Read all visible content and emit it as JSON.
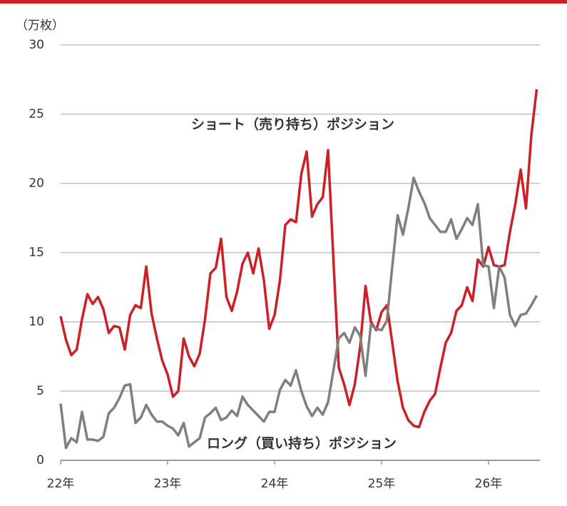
{
  "chart_data": {
    "type": "line",
    "y_label": "（万枚）",
    "x": [
      2022.0,
      2022.05,
      2022.1,
      2022.15,
      2022.2,
      2022.25,
      2022.3,
      2022.35,
      2022.4,
      2022.45,
      2022.5,
      2022.55,
      2022.6,
      2022.65,
      2022.7,
      2022.75,
      2022.8,
      2022.85,
      2022.9,
      2022.95,
      2023.0,
      2023.05,
      2023.1,
      2023.15,
      2023.2,
      2023.25,
      2023.3,
      2023.35,
      2023.4,
      2023.45,
      2023.5,
      2023.55,
      2023.6,
      2023.65,
      2023.7,
      2023.75,
      2023.8,
      2023.85,
      2023.9,
      2023.95,
      2024.0,
      2024.05,
      2024.1,
      2024.15,
      2024.2,
      2024.25,
      2024.3,
      2024.35,
      2024.4,
      2024.45,
      2024.5,
      2024.55,
      2024.6,
      2024.65,
      2024.7,
      2024.75,
      2024.8,
      2024.85,
      2024.9,
      2024.95,
      2025.0,
      2025.05,
      2025.1,
      2025.15,
      2025.2,
      2025.25,
      2025.3,
      2025.35,
      2025.4,
      2025.45,
      2025.5,
      2025.55,
      2025.6,
      2025.65,
      2025.7,
      2025.75,
      2025.8,
      2025.85,
      2025.9,
      2025.95,
      2026.0,
      2026.05,
      2026.1,
      2026.15,
      2026.2,
      2026.25,
      2026.3,
      2026.35,
      2026.4,
      2026.45
    ],
    "series": [
      {
        "name": "ショート（売り持ち）ポジション",
        "color": "#cc1f26",
        "values": [
          10.4,
          8.7,
          7.6,
          8.0,
          10.2,
          12.0,
          11.3,
          11.8,
          10.9,
          9.2,
          9.7,
          9.6,
          8.0,
          10.5,
          11.2,
          11.0,
          14.0,
          10.6,
          8.8,
          7.2,
          6.2,
          4.6,
          5.0,
          8.8,
          7.5,
          6.8,
          7.7,
          10.2,
          13.5,
          13.9,
          16.0,
          11.8,
          10.8,
          12.2,
          14.2,
          15.0,
          13.5,
          15.3,
          13.0,
          9.5,
          10.5,
          13.0,
          17.0,
          17.4,
          17.2,
          20.7,
          22.3,
          17.6,
          18.5,
          19.0,
          22.4,
          14.5,
          6.7,
          5.5,
          4.0,
          5.5,
          8.2,
          12.6,
          10.0,
          9.4,
          10.7,
          11.2,
          8.5,
          5.7,
          3.8,
          2.9,
          2.5,
          2.4,
          3.5,
          4.3,
          4.8,
          6.7,
          8.5,
          9.2,
          10.8,
          11.2,
          12.5,
          11.5,
          14.5,
          14.0,
          15.4,
          14.1,
          14.0,
          14.1,
          16.5,
          18.5,
          21.0,
          18.2,
          23.5,
          26.8
        ]
      },
      {
        "name": "ロング（買い持ち）ポジション",
        "color": "#7f7f7f",
        "values": [
          4.1,
          0.9,
          1.6,
          1.3,
          3.5,
          1.5,
          1.5,
          1.4,
          1.7,
          3.4,
          3.8,
          4.5,
          5.4,
          5.5,
          2.7,
          3.1,
          4.0,
          3.3,
          2.8,
          2.8,
          2.5,
          2.3,
          1.8,
          2.7,
          1.0,
          1.3,
          1.6,
          3.1,
          3.4,
          3.8,
          2.9,
          3.1,
          3.6,
          3.2,
          4.6,
          4.0,
          3.6,
          3.2,
          2.8,
          3.5,
          3.5,
          5.1,
          5.8,
          5.4,
          6.5,
          5.0,
          3.9,
          3.2,
          3.8,
          3.3,
          4.2,
          6.5,
          8.8,
          9.2,
          8.5,
          9.6,
          9.0,
          6.1,
          9.8,
          9.5,
          9.4,
          10.1,
          14.0,
          17.7,
          16.3,
          18.2,
          20.4,
          19.4,
          18.6,
          17.5,
          17.0,
          16.5,
          16.5,
          17.4,
          16.0,
          16.7,
          17.5,
          17.0,
          18.5,
          14.1,
          14.0,
          11.0,
          14.0,
          13.2,
          10.5,
          9.7,
          10.5,
          10.6,
          11.2,
          11.9
        ]
      }
    ],
    "xlim": [
      2022,
      2026.48
    ],
    "xticks": [
      {
        "value": 2022,
        "label": "22年"
      },
      {
        "value": 2023,
        "label": "23年"
      },
      {
        "value": 2024,
        "label": "24年"
      },
      {
        "value": 2025,
        "label": "25年"
      },
      {
        "value": 2026,
        "label": "26年"
      }
    ],
    "ylim": [
      0,
      30
    ],
    "yticks": [
      0,
      5,
      10,
      15,
      20,
      25,
      30
    ],
    "grid": true
  }
}
